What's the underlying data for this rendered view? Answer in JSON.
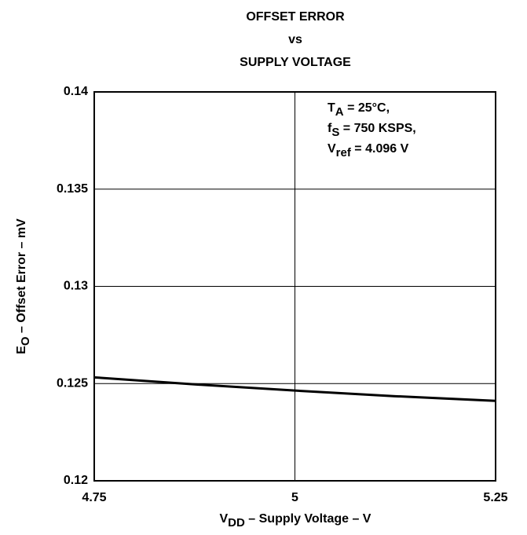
{
  "chart_data": {
    "type": "line",
    "title": [
      "OFFSET ERROR",
      "vs",
      "SUPPLY VOLTAGE"
    ],
    "x_label": [
      {
        "text": "V"
      },
      {
        "sub": "DD"
      },
      {
        "text": " – Supply Voltage – V"
      }
    ],
    "y_label": [
      {
        "text": "E"
      },
      {
        "sub": "O"
      },
      {
        "text": " – Offset Error – mV"
      }
    ],
    "annotation": [
      [
        {
          "text": "T"
        },
        {
          "sub": "A"
        },
        {
          "text": " = 25°C,"
        }
      ],
      [
        {
          "text": "f"
        },
        {
          "sub": "S"
        },
        {
          "text": " = 750 KSPS,"
        }
      ],
      [
        {
          "text": "V"
        },
        {
          "sub": "ref"
        },
        {
          "text": " = 4.096 V"
        }
      ]
    ],
    "x": [
      4.75,
      4.875,
      5,
      5.125,
      5.25
    ],
    "series": [
      {
        "name": "Offset Error",
        "color": "#000000",
        "values": [
          0.12532,
          0.12496,
          0.12464,
          0.12435,
          0.12411
        ]
      }
    ],
    "xlim": [
      4.75,
      5.25
    ],
    "xticks": [
      4.75,
      5,
      5.25
    ],
    "ylim": [
      0.12,
      0.14
    ],
    "yticks": [
      0.12,
      0.125,
      0.13,
      0.135,
      0.14
    ],
    "grid": true
  }
}
